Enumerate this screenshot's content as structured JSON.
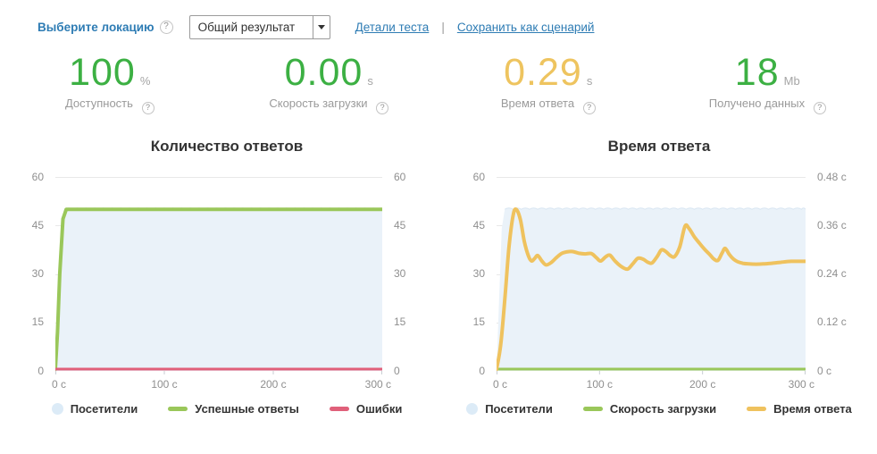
{
  "header": {
    "location_label": "Выберите локацию",
    "help_icon": "?",
    "result_select_value": "Общий результат",
    "details_link": "Детали теста",
    "separator": "|",
    "save_link": "Сохранить как сценарий"
  },
  "metrics": [
    {
      "value": "100",
      "unit": "%",
      "label": "Доступность",
      "color": "#3cb043"
    },
    {
      "value": "0.00",
      "unit": "s",
      "label": "Скорость загрузки",
      "color": "#3cb043"
    },
    {
      "value": "0.29",
      "unit": "s",
      "label": "Время ответа",
      "color": "#eec45f"
    },
    {
      "value": "18",
      "unit": "Mb",
      "label": "Получено данных",
      "color": "#3cb043"
    }
  ],
  "colors": {
    "link": "#2e7cb4",
    "grid": "#e8e8e8",
    "axis_line": "#c9ced3",
    "axis_text": "#8f8f8f",
    "visitors_fill": "#eaf2f9",
    "visitors_edge": "#d9e6f2",
    "legend_circle": "#dcebf7",
    "green_line": "#9ac75a",
    "red_line": "#e0607a",
    "yellow_line": "#efc25e"
  },
  "chart_data": [
    {
      "type": "line",
      "title": "Количество ответов",
      "xlabel": "",
      "ylabel": "",
      "xlim": [
        0,
        300
      ],
      "ylim_left": [
        0,
        60
      ],
      "x_ticks": [
        "0 с",
        "100 с",
        "200 с",
        "300 с"
      ],
      "left_ticks": [
        "60",
        "45",
        "30",
        "15",
        "0"
      ],
      "right_ticks": [
        "60",
        "45",
        "30",
        "15",
        "0"
      ],
      "grid": true,
      "legend_position": "bottom",
      "series": [
        {
          "name": "Посетители",
          "kind": "area",
          "color": "#eaf2f9",
          "edge_color": "#d9e6f2",
          "level": 50,
          "ramp": [
            [
              0,
              0
            ],
            [
              2,
              18
            ],
            [
              5,
              44
            ],
            [
              8,
              50
            ]
          ]
        },
        {
          "name": "Успешные ответы",
          "kind": "line",
          "color": "#9ac75a",
          "width": 4,
          "smooth": false,
          "points": [
            [
              0,
              0
            ],
            [
              2,
              12
            ],
            [
              4,
              30
            ],
            [
              7,
              47
            ],
            [
              10,
              50
            ],
            [
              300,
              50
            ]
          ]
        },
        {
          "name": "Ошибки",
          "kind": "line",
          "color": "#e0607a",
          "width": 3,
          "smooth": false,
          "points": [
            [
              0,
              0
            ],
            [
              300,
              0
            ]
          ]
        }
      ],
      "legend": [
        {
          "label": "Посетители",
          "marker": "circle",
          "color": "#dcebf7"
        },
        {
          "label": "Успешные ответы",
          "marker": "line",
          "color": "#9ac75a"
        },
        {
          "label": "Ошибки",
          "marker": "line",
          "color": "#e0607a"
        }
      ]
    },
    {
      "type": "line",
      "title": "Время ответа",
      "xlabel": "",
      "ylabel": "",
      "xlim": [
        0,
        300
      ],
      "ylim_left": [
        0,
        60
      ],
      "ylim_right_seconds": [
        0,
        0.48
      ],
      "x_ticks": [
        "0 с",
        "100 с",
        "200 с",
        "300 с"
      ],
      "left_ticks": [
        "60",
        "45",
        "30",
        "15",
        "0"
      ],
      "right_ticks": [
        "0.48 с",
        "0.36 с",
        "0.24 с",
        "0.12 с",
        "0 с"
      ],
      "grid": true,
      "legend_position": "bottom",
      "series": [
        {
          "name": "Посетители",
          "kind": "area",
          "color": "#eaf2f9",
          "edge_color": "#d9e6f2",
          "level": 50,
          "ramp": [
            [
              0,
              0
            ],
            [
              2,
              18
            ],
            [
              5,
              44
            ],
            [
              8,
              50
            ]
          ]
        },
        {
          "name": "Скорость загрузки",
          "kind": "line",
          "color": "#9ac75a",
          "width": 3,
          "smooth": false,
          "points": [
            [
              0,
              0
            ],
            [
              300,
              0
            ]
          ]
        },
        {
          "name": "Время ответа",
          "kind": "line",
          "color": "#efc25e",
          "width": 4,
          "smooth": true,
          "points": [
            [
              0,
              0
            ],
            [
              4,
              8
            ],
            [
              8,
              22
            ],
            [
              12,
              38
            ],
            [
              16,
              48
            ],
            [
              19,
              50
            ],
            [
              23,
              47
            ],
            [
              27,
              40
            ],
            [
              31,
              35.5
            ],
            [
              34,
              34
            ],
            [
              37,
              34.8
            ],
            [
              40,
              35.7
            ],
            [
              44,
              34
            ],
            [
              48,
              32.8
            ],
            [
              53,
              33.5
            ],
            [
              58,
              35
            ],
            [
              63,
              36.3
            ],
            [
              68,
              36.8
            ],
            [
              74,
              36.9
            ],
            [
              80,
              36.4
            ],
            [
              86,
              36.2
            ],
            [
              92,
              36.3
            ],
            [
              97,
              35
            ],
            [
              101,
              34
            ],
            [
              106,
              35.3
            ],
            [
              110,
              35.8
            ],
            [
              115,
              34
            ],
            [
              121,
              32.3
            ],
            [
              127,
              31.5
            ],
            [
              132,
              33
            ],
            [
              137,
              34.8
            ],
            [
              142,
              34.6
            ],
            [
              147,
              33.6
            ],
            [
              151,
              33.4
            ],
            [
              156,
              35.4
            ],
            [
              160,
              37.4
            ],
            [
              164,
              37
            ],
            [
              169,
              35.6
            ],
            [
              173,
              35.4
            ],
            [
              178,
              38.5
            ],
            [
              183,
              44.8
            ],
            [
              187,
              44
            ],
            [
              192,
              41.5
            ],
            [
              197,
              39.5
            ],
            [
              202,
              37.6
            ],
            [
              207,
              36
            ],
            [
              211,
              34.6
            ],
            [
              215,
              34.2
            ],
            [
              219,
              36.5
            ],
            [
              222,
              37.9
            ],
            [
              226,
              36
            ],
            [
              230,
              34.6
            ],
            [
              234,
              33.8
            ],
            [
              239,
              33.3
            ],
            [
              245,
              33.1
            ],
            [
              252,
              33
            ],
            [
              259,
              33.1
            ],
            [
              267,
              33.3
            ],
            [
              276,
              33.6
            ],
            [
              286,
              33.9
            ],
            [
              300,
              33.9
            ]
          ]
        }
      ],
      "legend": [
        {
          "label": "Посетители",
          "marker": "circle",
          "color": "#dcebf7"
        },
        {
          "label": "Скорость загрузки",
          "marker": "line",
          "color": "#9ac75a"
        },
        {
          "label": "Время ответа",
          "marker": "line",
          "color": "#efc25e"
        }
      ]
    }
  ]
}
